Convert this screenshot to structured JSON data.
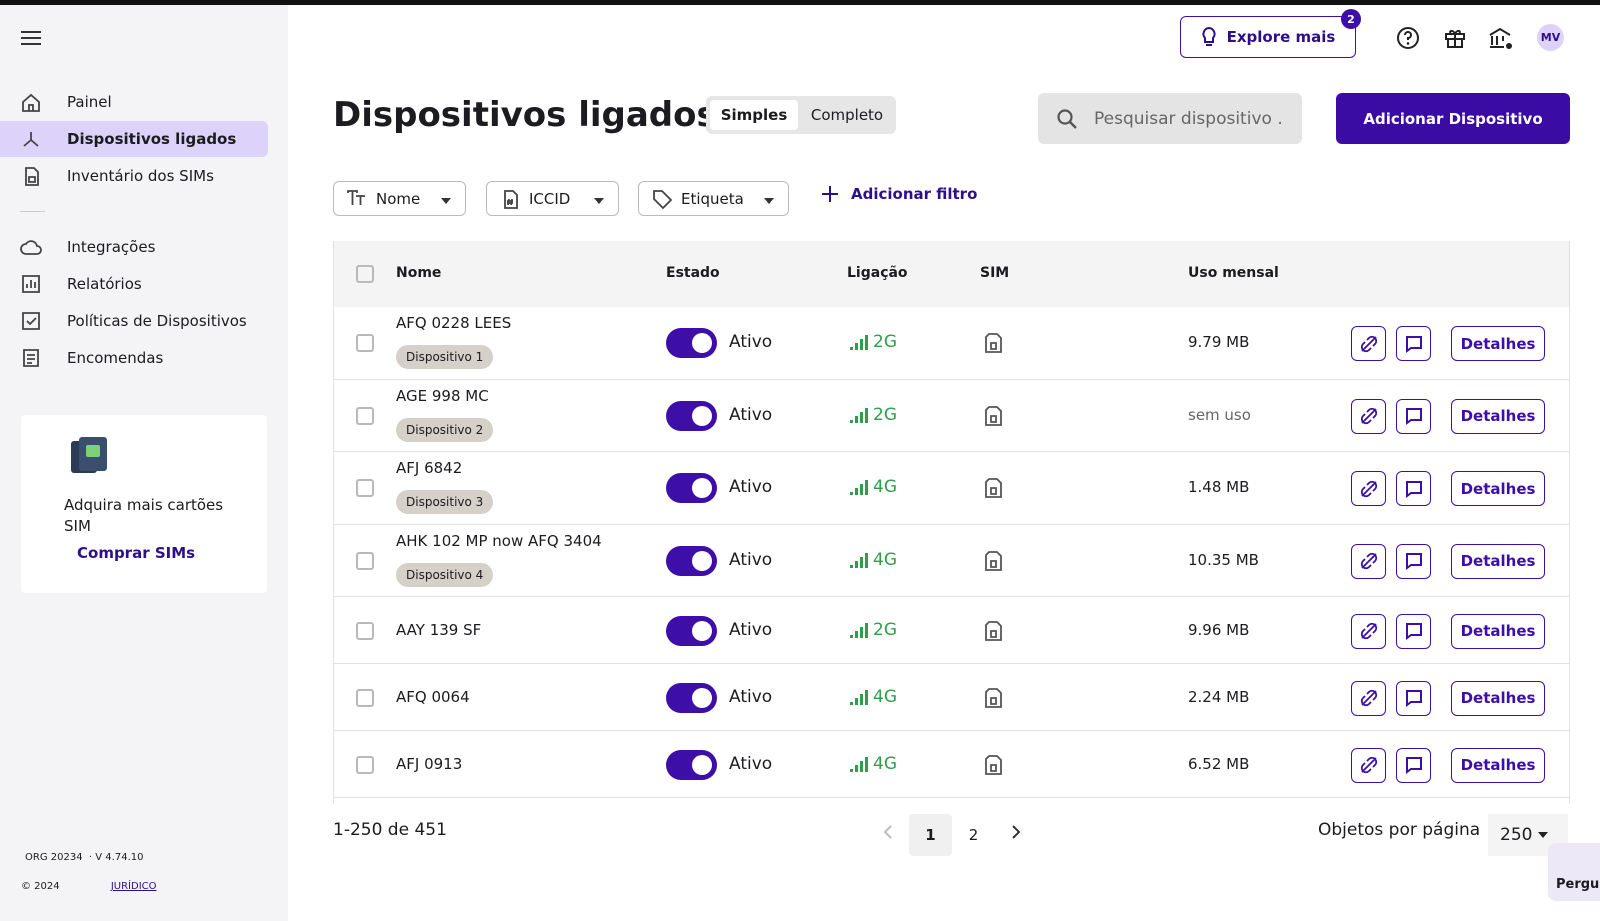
{
  "sidebar": {
    "nav": [
      "Painel",
      "Dispositivos ligados",
      "Inventário dos SIMs"
    ],
    "nav2": [
      "Integrações",
      "Relatórios",
      "Políticas de Dispositivos",
      "Encomendas"
    ],
    "promo": {
      "text": "Adquira mais cartões SIM",
      "link": "Comprar SIMs"
    },
    "footer": {
      "org": "ORG 20234",
      "version": "· V 4.74.10",
      "copyright": "© 2024",
      "legal": "JURÍDICO"
    }
  },
  "topbar": {
    "explore": "Explore mais",
    "badge": "2",
    "avatar": "MV"
  },
  "header": {
    "title": "Dispositivos ligados",
    "views": [
      "Simples",
      "Completo"
    ],
    "search": "Pesquisar dispositivo .",
    "add": "Adicionar Dispositivo"
  },
  "filters": {
    "items": [
      "Nome",
      "ICCID",
      "Etiqueta"
    ],
    "add": "Adicionar filtro"
  },
  "table": {
    "columns": [
      "Nome",
      "Estado",
      "Ligação",
      "SIM",
      "Uso mensal"
    ],
    "action": "Detalhes",
    "rows": [
      {
        "name": "AFQ 0228 LEES",
        "tag": "Dispositivo 1",
        "status": "Ativo",
        "network": "2G",
        "usage": "9.79 MB"
      },
      {
        "name": "AGE 998 MC",
        "tag": "Dispositivo 2",
        "status": "Ativo",
        "network": "2G",
        "usage": "sem uso"
      },
      {
        "name": "AFJ 6842",
        "tag": "Dispositivo 3",
        "status": "Ativo",
        "network": "4G",
        "usage": "1.48 MB"
      },
      {
        "name": "AHK 102 MP now AFQ 3404",
        "tag": "Dispositivo 4",
        "status": "Ativo",
        "network": "4G",
        "usage": "10.35 MB"
      },
      {
        "name": "AAY 139 SF",
        "status": "Ativo",
        "network": "2G",
        "usage": "9.96 MB"
      },
      {
        "name": "AFQ 0064",
        "status": "Ativo",
        "network": "4G",
        "usage": "2.24 MB"
      },
      {
        "name": "AFJ 0913",
        "status": "Ativo",
        "network": "4G",
        "usage": "6.52 MB"
      }
    ]
  },
  "pagination": {
    "range": "1-250 de 451",
    "pages": [
      "1",
      "2"
    ],
    "per_page_label": "Objetos por página",
    "per_page": "250"
  },
  "help": "Pergun"
}
